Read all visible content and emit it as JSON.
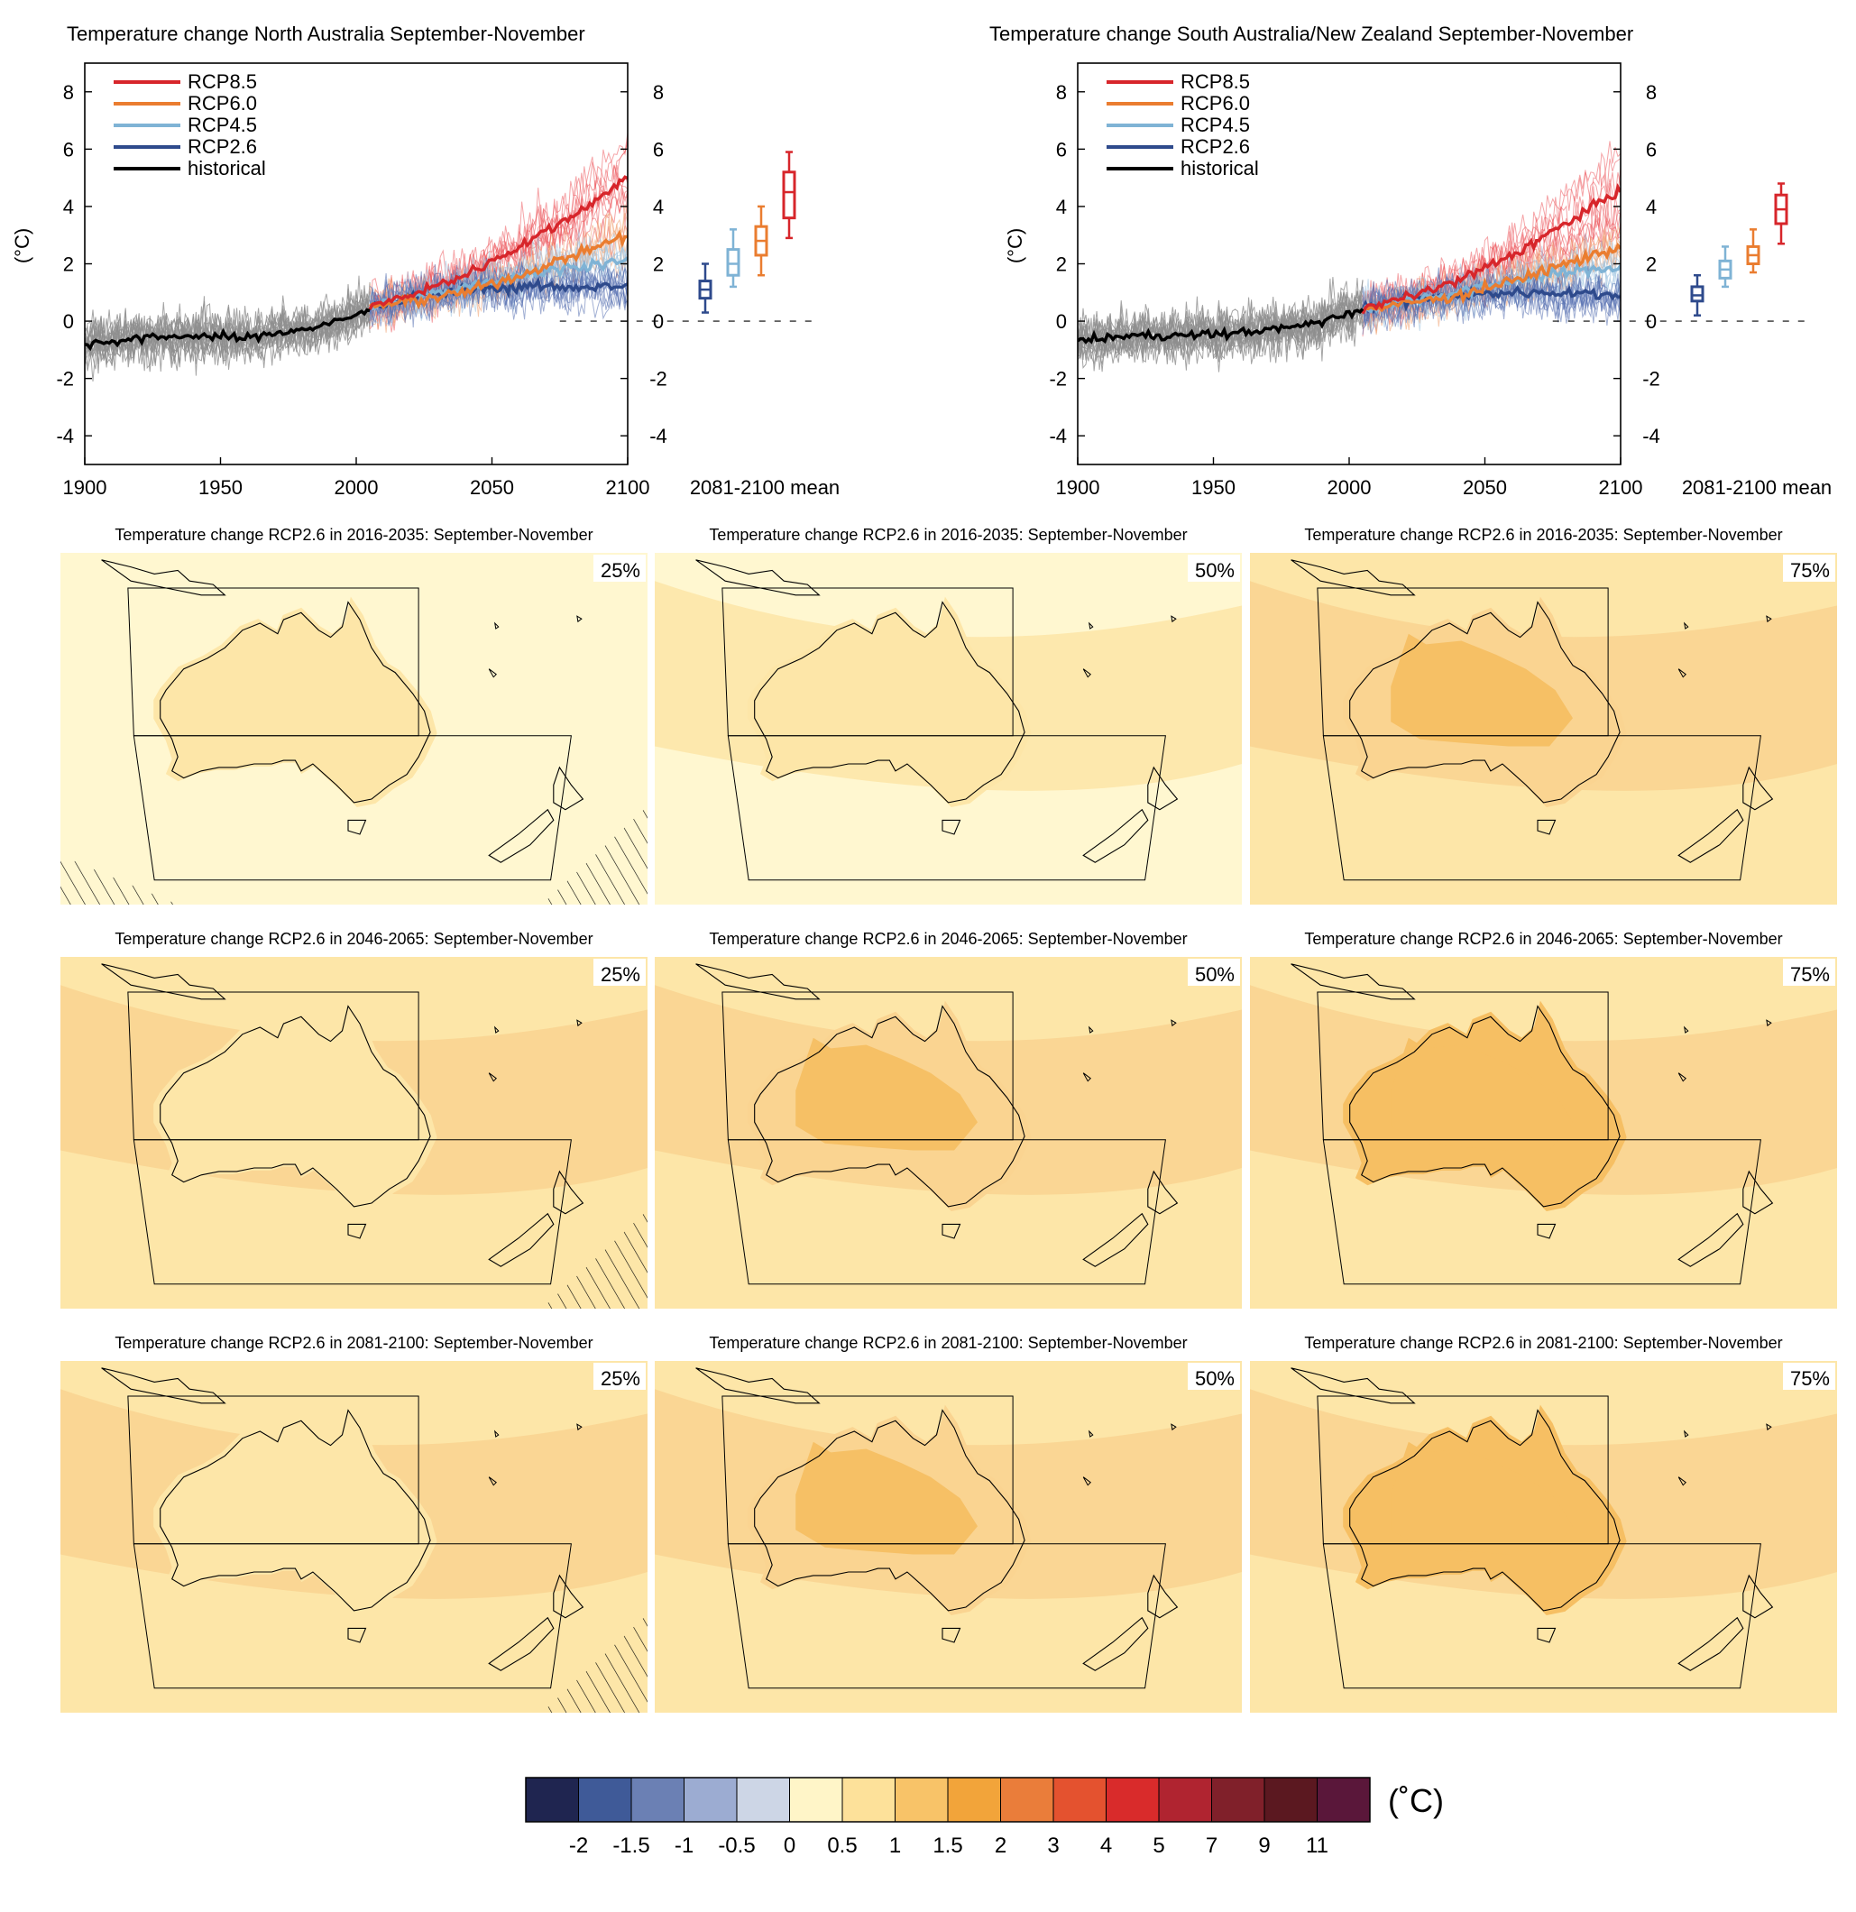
{
  "chart_data": [
    {
      "type": "line",
      "title": "Temperature change North Australia September-November",
      "ylabel": "(°C)",
      "xlim": [
        1900,
        2100
      ],
      "ylim": [
        -5,
        9
      ],
      "x_ticks": [
        1900,
        1950,
        2000,
        2050,
        2100
      ],
      "y_ticks": [
        -4,
        -2,
        0,
        2,
        4,
        6,
        8
      ],
      "x_tick_labels": [
        "1900",
        "1950",
        "2000",
        "2050",
        "2100"
      ],
      "y_tick_labels": [
        "-4",
        "-2",
        "0",
        "2",
        "4",
        "6",
        "8"
      ],
      "legend": {
        "position": "top-left",
        "entries": [
          {
            "label": "RCP8.5",
            "color": "#d7262b"
          },
          {
            "label": "RCP6.0",
            "color": "#ea7d30"
          },
          {
            "label": "RCP4.5",
            "color": "#7fb3d5"
          },
          {
            "label": "RCP2.6",
            "color": "#2e4a8c"
          },
          {
            "label": "historical",
            "color": "#000000"
          }
        ]
      },
      "series": [
        {
          "name": "historical",
          "x": [
            1900,
            1920,
            1940,
            1960,
            1970,
            1980,
            1990,
            2000,
            2005
          ],
          "values": [
            -0.8,
            -0.6,
            -0.5,
            -0.6,
            -0.4,
            -0.3,
            -0.1,
            0.2,
            0.4
          ]
        },
        {
          "name": "RCP2.6",
          "x": [
            2005,
            2020,
            2040,
            2060,
            2080,
            2100
          ],
          "values": [
            0.5,
            0.8,
            1.1,
            1.2,
            1.2,
            1.2
          ]
        },
        {
          "name": "RCP4.5",
          "x": [
            2005,
            2020,
            2040,
            2060,
            2080,
            2100
          ],
          "values": [
            0.5,
            0.8,
            1.2,
            1.6,
            1.9,
            2.1
          ]
        },
        {
          "name": "RCP6.0",
          "x": [
            2005,
            2020,
            2040,
            2060,
            2080,
            2100
          ],
          "values": [
            0.5,
            0.7,
            1.0,
            1.6,
            2.3,
            3.0
          ]
        },
        {
          "name": "RCP8.5",
          "x": [
            2005,
            2020,
            2040,
            2060,
            2080,
            2100
          ],
          "values": [
            0.5,
            0.9,
            1.6,
            2.6,
            3.7,
            5.0
          ]
        }
      ],
      "zero_line": {
        "style": "dashed",
        "value": 0
      },
      "boxes_label": "2081-2100 mean",
      "boxes": [
        {
          "name": "RCP2.6",
          "color": "#2e4a8c",
          "whisker_low": 0.3,
          "q1": 0.8,
          "median": 1.1,
          "q3": 1.4,
          "whisker_high": 2.0
        },
        {
          "name": "RCP4.5",
          "color": "#7fb3d5",
          "whisker_low": 1.2,
          "q1": 1.6,
          "median": 2.0,
          "q3": 2.5,
          "whisker_high": 3.2
        },
        {
          "name": "RCP6.0",
          "color": "#ea7d30",
          "whisker_low": 1.6,
          "q1": 2.3,
          "median": 2.8,
          "q3": 3.3,
          "whisker_high": 4.0
        },
        {
          "name": "RCP8.5",
          "color": "#d7262b",
          "whisker_low": 2.9,
          "q1": 3.6,
          "median": 4.5,
          "q3": 5.2,
          "whisker_high": 5.9
        }
      ]
    },
    {
      "type": "line",
      "title": "Temperature change South Australia/New Zealand September-November",
      "ylabel": "(°C)",
      "xlim": [
        1900,
        2100
      ],
      "ylim": [
        -5,
        9
      ],
      "x_ticks": [
        1900,
        1950,
        2000,
        2050,
        2100
      ],
      "y_ticks": [
        -4,
        -2,
        0,
        2,
        4,
        6,
        8
      ],
      "x_tick_labels": [
        "1900",
        "1950",
        "2000",
        "2050",
        "2100"
      ],
      "y_tick_labels": [
        "-4",
        "-2",
        "0",
        "2",
        "4",
        "6",
        "8"
      ],
      "legend": {
        "position": "top-left",
        "entries": [
          {
            "label": "RCP8.5",
            "color": "#d7262b"
          },
          {
            "label": "RCP6.0",
            "color": "#ea7d30"
          },
          {
            "label": "RCP4.5",
            "color": "#7fb3d5"
          },
          {
            "label": "RCP2.6",
            "color": "#2e4a8c"
          },
          {
            "label": "historical",
            "color": "#000000"
          }
        ]
      },
      "series": [
        {
          "name": "historical",
          "x": [
            1900,
            1920,
            1940,
            1960,
            1970,
            1980,
            1990,
            2000,
            2005
          ],
          "values": [
            -0.7,
            -0.5,
            -0.5,
            -0.4,
            -0.3,
            -0.2,
            0.0,
            0.3,
            0.4
          ]
        },
        {
          "name": "RCP2.6",
          "x": [
            2005,
            2020,
            2040,
            2060,
            2080,
            2100
          ],
          "values": [
            0.4,
            0.7,
            0.9,
            1.0,
            1.0,
            0.9
          ]
        },
        {
          "name": "RCP4.5",
          "x": [
            2005,
            2020,
            2040,
            2060,
            2080,
            2100
          ],
          "values": [
            0.4,
            0.7,
            1.0,
            1.4,
            1.7,
            1.9
          ]
        },
        {
          "name": "RCP6.0",
          "x": [
            2005,
            2020,
            2040,
            2060,
            2080,
            2100
          ],
          "values": [
            0.4,
            0.6,
            0.9,
            1.4,
            2.0,
            2.6
          ]
        },
        {
          "name": "RCP8.5",
          "x": [
            2005,
            2020,
            2040,
            2060,
            2080,
            2100
          ],
          "values": [
            0.4,
            0.8,
            1.4,
            2.3,
            3.4,
            4.6
          ]
        }
      ],
      "zero_line": {
        "style": "dashed",
        "value": 0
      },
      "boxes_label": "2081-2100 mean",
      "boxes": [
        {
          "name": "RCP2.6",
          "color": "#2e4a8c",
          "whisker_low": 0.2,
          "q1": 0.7,
          "median": 0.9,
          "q3": 1.2,
          "whisker_high": 1.6
        },
        {
          "name": "RCP4.5",
          "color": "#7fb3d5",
          "whisker_low": 1.2,
          "q1": 1.5,
          "median": 1.8,
          "q3": 2.1,
          "whisker_high": 2.6
        },
        {
          "name": "RCP6.0",
          "color": "#ea7d30",
          "whisker_low": 1.7,
          "q1": 2.0,
          "median": 2.3,
          "q3": 2.6,
          "whisker_high": 3.2
        },
        {
          "name": "RCP8.5",
          "color": "#d7262b",
          "whisker_low": 2.7,
          "q1": 3.4,
          "median": 3.9,
          "q3": 4.4,
          "whisker_high": 4.8
        }
      ]
    },
    {
      "type": "heatmap",
      "description_of_grid": "3x3 maps of projected temperature change (RCP2.6), rows = periods, columns = percentiles",
      "periods": [
        "2016-2035",
        "2046-2065",
        "2081-2100"
      ],
      "percentiles": [
        "25%",
        "50%",
        "75%"
      ],
      "map_titles": [
        [
          "Temperature change RCP2.6 in 2016-2035: September-November",
          "Temperature change RCP2.6 in 2016-2035: September-November",
          "Temperature change RCP2.6 in 2016-2035: September-November"
        ],
        [
          "Temperature change RCP2.6 in 2046-2065: September-November",
          "Temperature change RCP2.6 in 2046-2065: September-November",
          "Temperature change RCP2.6 in 2046-2065: September-November"
        ],
        [
          "Temperature change RCP2.6 in 2081-2100: September-November",
          "Temperature change RCP2.6 in 2081-2100: September-November",
          "Temperature change RCP2.6 in 2081-2100: September-November"
        ]
      ],
      "approx_land_level_class": [
        [
          0,
          0,
          1
        ],
        [
          0,
          1,
          2
        ],
        [
          0,
          1,
          2
        ]
      ],
      "approx_ocean_level_class": [
        [
          -1,
          -1,
          0
        ],
        [
          0,
          0,
          0
        ],
        [
          0,
          0,
          0
        ]
      ]
    },
    {
      "type": "colorbar",
      "unit_label": "(˚C)",
      "colors": [
        "#1f2550",
        "#3f5a98",
        "#6b80b4",
        "#9cacd2",
        "#cdd6e6",
        "#fff5c8",
        "#fde19a",
        "#f8c368",
        "#f2a43a",
        "#ea7d3a",
        "#e4522f",
        "#d92b2b",
        "#b02430",
        "#80202a",
        "#5b1820",
        "#5a173a"
      ],
      "tick_labels": [
        "-2",
        "-1.5",
        "-1",
        "-0.5",
        "0",
        "0.5",
        "1",
        "1.5",
        "2",
        "3",
        "4",
        "5",
        "7",
        "9",
        "11"
      ]
    }
  ]
}
